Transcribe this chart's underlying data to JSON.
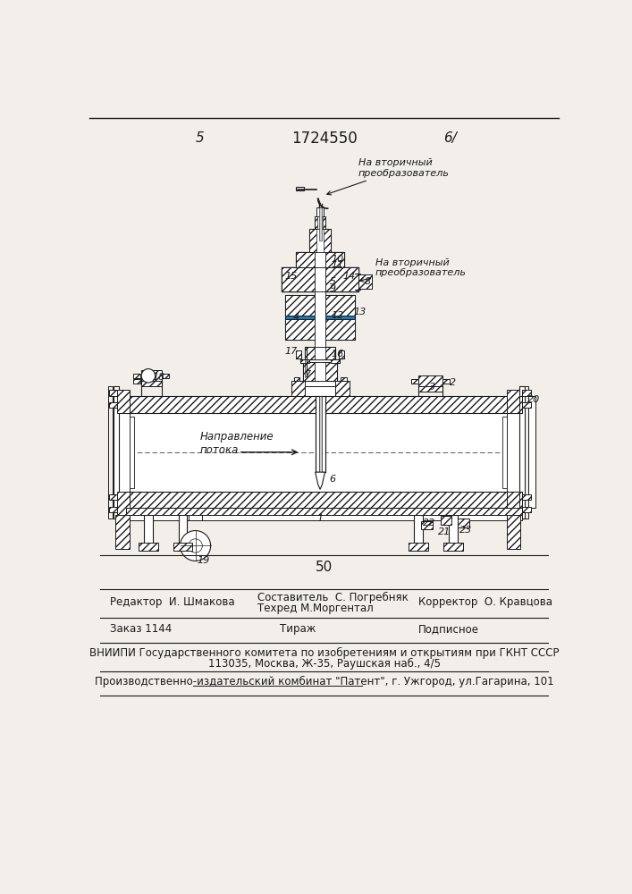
{
  "page_num_left": "5",
  "page_num_right": "6/",
  "patent_number": "1724550",
  "page_number_bottom": "50",
  "label_top": "На вторичный\nпреобразователь",
  "label_mid": "На вторичный\nпреобразователь",
  "label_flow": "Направление\nпотока",
  "footer_editor": "Редактор  И. Шмакова",
  "footer_comp": "Составитель  С. Погребняк",
  "footer_tech": "Техред М.Моргентал",
  "footer_corr": "Корректор  О. Кравцова",
  "footer_order": "Заказ 1144",
  "footer_tiraz": "Тираж",
  "footer_podp": "Подписное",
  "footer_vniip": "ВНИИПИ Государственного комитета по изобретениям и открытиям при ГКНТ СССР",
  "footer_addr": "113035, Москва, Ж-35, Раушская наб., 4/5",
  "footer_prod": "Производственно-издательский комбинат \"Патент\", г. Ужгород, ул.Гагарина, 101",
  "bg_color": "#f2efea",
  "lc": "#1a1a1a"
}
